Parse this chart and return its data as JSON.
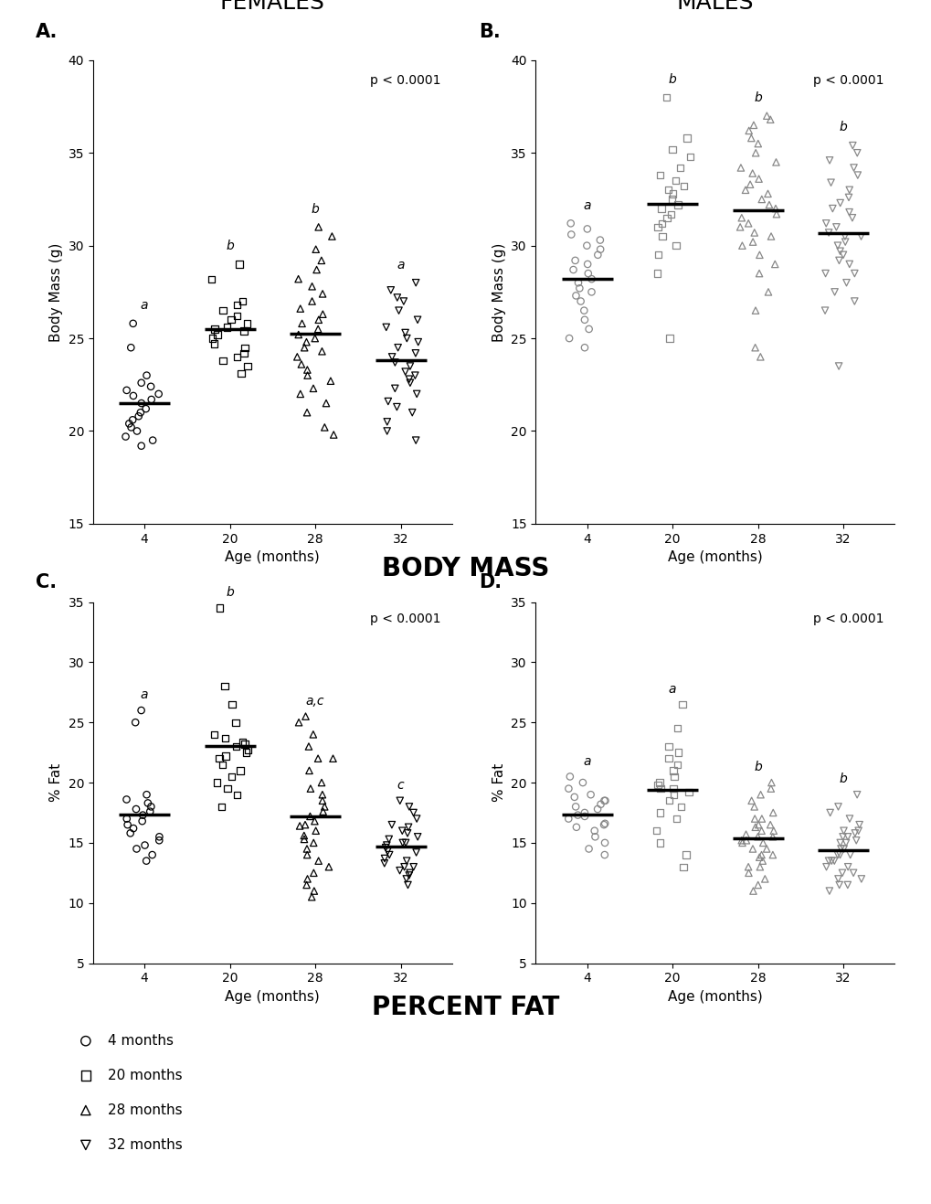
{
  "fig_width": 10.2,
  "fig_height": 13.17,
  "background_color": "#ffffff",
  "panel_A": {
    "title": "FEMALES",
    "panel_label": "A.",
    "ylabel": "Body Mass (g)",
    "xlabel": "Age (months)",
    "pvalue": "p < 0.0001",
    "ylim": [
      15,
      40
    ],
    "yticks": [
      15,
      20,
      25,
      30,
      35,
      40
    ],
    "xtick_labels": [
      "4",
      "20",
      "28",
      "32"
    ],
    "sig_labels": [
      "a",
      "b",
      "b",
      "a"
    ],
    "color": "#000000",
    "groups": {
      "4": {
        "mean": 22.0,
        "values": [
          19.2,
          19.5,
          19.7,
          20.0,
          20.2,
          20.4,
          20.6,
          20.8,
          21.0,
          21.2,
          21.5,
          21.7,
          21.9,
          22.0,
          22.2,
          22.4,
          22.6,
          23.0,
          24.5,
          25.8
        ]
      },
      "20": {
        "mean": 25.5,
        "values": [
          23.1,
          23.5,
          23.8,
          24.0,
          24.2,
          24.5,
          24.7,
          25.0,
          25.2,
          25.4,
          25.5,
          25.6,
          25.8,
          26.0,
          26.2,
          26.5,
          26.8,
          27.0,
          28.2,
          29.0
        ]
      },
      "28": {
        "mean": 25.3,
        "values": [
          19.8,
          20.2,
          21.0,
          21.5,
          22.0,
          22.3,
          22.7,
          23.0,
          23.3,
          23.6,
          24.0,
          24.3,
          24.5,
          24.8,
          25.0,
          25.2,
          25.5,
          25.8,
          26.0,
          26.3,
          26.6,
          27.0,
          27.4,
          27.8,
          28.2,
          28.7,
          29.2,
          29.8,
          30.5,
          31.0
        ]
      },
      "32": {
        "mean": 23.5,
        "values": [
          19.5,
          20.0,
          20.5,
          21.0,
          21.3,
          21.6,
          22.0,
          22.3,
          22.6,
          22.8,
          23.0,
          23.2,
          23.5,
          23.7,
          24.0,
          24.2,
          24.5,
          24.8,
          25.0,
          25.3,
          25.6,
          26.0,
          26.5,
          27.0,
          27.2,
          27.6,
          28.0
        ]
      }
    }
  },
  "panel_B": {
    "title": "MALES",
    "panel_label": "B.",
    "ylabel": "Body Mass (g)",
    "xlabel": "Age (months)",
    "pvalue": "p < 0.0001",
    "ylim": [
      15,
      40
    ],
    "yticks": [
      15,
      20,
      25,
      30,
      35,
      40
    ],
    "xtick_labels": [
      "4",
      "20",
      "28",
      "32"
    ],
    "sig_labels": [
      "a",
      "b",
      "b",
      "b"
    ],
    "color": "#888888",
    "groups": {
      "4": {
        "mean": 28.0,
        "values": [
          24.5,
          25.0,
          25.5,
          26.0,
          26.5,
          27.0,
          27.3,
          27.5,
          27.7,
          28.0,
          28.2,
          28.5,
          28.7,
          29.0,
          29.2,
          29.5,
          29.8,
          30.0,
          30.3,
          30.6,
          30.9,
          31.2
        ]
      },
      "20": {
        "mean": 31.8,
        "values": [
          25.0,
          28.5,
          29.5,
          30.0,
          30.5,
          31.0,
          31.2,
          31.5,
          31.7,
          32.0,
          32.2,
          32.5,
          32.8,
          33.0,
          33.2,
          33.5,
          33.8,
          34.2,
          34.8,
          35.2,
          35.8,
          38.0
        ]
      },
      "28": {
        "mean": 31.2,
        "values": [
          24.0,
          24.5,
          26.5,
          27.5,
          28.5,
          29.0,
          29.5,
          30.0,
          30.2,
          30.5,
          30.7,
          31.0,
          31.2,
          31.5,
          31.7,
          32.0,
          32.2,
          32.5,
          32.8,
          33.0,
          33.3,
          33.6,
          33.9,
          34.2,
          34.5,
          35.0,
          35.5,
          35.8,
          36.2,
          36.5,
          36.8,
          37.0
        ]
      },
      "32": {
        "mean": 29.8,
        "values": [
          23.5,
          26.5,
          27.0,
          27.5,
          28.0,
          28.5,
          29.0,
          29.2,
          29.5,
          29.7,
          30.0,
          30.2,
          30.5,
          30.7,
          31.0,
          31.2,
          31.5,
          31.8,
          32.0,
          32.3,
          32.6,
          33.0,
          33.4,
          33.8,
          34.2,
          34.6,
          35.0,
          35.4,
          28.5,
          30.5
        ]
      }
    }
  },
  "panel_C": {
    "panel_label": "C.",
    "ylabel": "% Fat",
    "xlabel": "Age (months)",
    "pvalue": "p < 0.0001",
    "ylim": [
      5,
      35
    ],
    "yticks": [
      5,
      10,
      15,
      20,
      25,
      30,
      35
    ],
    "xtick_labels": [
      "4",
      "20",
      "28",
      "32"
    ],
    "sig_labels": [
      "a",
      "b",
      "a,c",
      "c"
    ],
    "color": "#000000",
    "groups": {
      "4": {
        "mean": 17.3,
        "values": [
          13.5,
          14.0,
          14.5,
          14.8,
          15.2,
          15.5,
          15.8,
          16.2,
          16.5,
          16.8,
          17.0,
          17.3,
          17.6,
          17.8,
          18.0,
          18.3,
          18.6,
          19.0,
          25.0,
          26.0
        ]
      },
      "20": {
        "mean": 22.5,
        "values": [
          18.0,
          19.0,
          19.5,
          20.0,
          20.5,
          21.0,
          21.5,
          22.0,
          22.2,
          22.5,
          22.7,
          23.0,
          23.2,
          23.4,
          23.7,
          24.0,
          25.0,
          26.5,
          28.0,
          34.5
        ]
      },
      "28": {
        "mean": 16.5,
        "values": [
          10.5,
          11.0,
          11.5,
          12.0,
          12.5,
          13.0,
          13.5,
          14.0,
          14.5,
          15.0,
          15.3,
          15.6,
          16.0,
          16.4,
          16.8,
          17.2,
          17.6,
          18.0,
          18.5,
          19.0,
          19.5,
          20.0,
          21.0,
          22.0,
          23.0,
          24.0,
          25.0,
          25.5,
          22.0,
          16.5
        ]
      },
      "32": {
        "mean": 14.0,
        "values": [
          11.5,
          12.0,
          12.3,
          12.7,
          13.0,
          13.3,
          13.7,
          14.0,
          14.3,
          14.6,
          14.8,
          15.0,
          15.3,
          15.5,
          15.8,
          16.0,
          16.3,
          16.5,
          17.0,
          17.5,
          18.0,
          18.5,
          13.0,
          12.5,
          13.5,
          14.2,
          15.0
        ]
      }
    }
  },
  "panel_D": {
    "panel_label": "D.",
    "ylabel": "% Fat",
    "xlabel": "Age (months)",
    "pvalue": "p < 0.0001",
    "ylim": [
      5,
      35
    ],
    "yticks": [
      5,
      10,
      15,
      20,
      25,
      30,
      35
    ],
    "xtick_labels": [
      "4",
      "20",
      "28",
      "32"
    ],
    "sig_labels": [
      "a",
      "a",
      "b",
      "b"
    ],
    "color": "#888888",
    "groups": {
      "4": {
        "mean": 17.2,
        "values": [
          14.0,
          14.5,
          15.0,
          15.5,
          16.0,
          16.3,
          16.6,
          17.0,
          17.3,
          17.5,
          17.8,
          18.0,
          18.2,
          18.5,
          18.8,
          19.0,
          19.5,
          20.0,
          20.5,
          18.5,
          17.2,
          16.5
        ]
      },
      "20": {
        "mean": 19.0,
        "values": [
          13.0,
          14.0,
          15.0,
          16.0,
          17.0,
          17.5,
          18.0,
          18.5,
          19.0,
          19.2,
          19.5,
          19.8,
          20.0,
          20.5,
          21.0,
          21.5,
          22.0,
          22.5,
          23.0,
          24.5,
          26.5,
          19.5
        ]
      },
      "28": {
        "mean": 15.5,
        "values": [
          11.0,
          11.5,
          12.0,
          12.5,
          13.0,
          13.5,
          14.0,
          14.5,
          15.0,
          15.2,
          15.5,
          15.7,
          16.0,
          16.3,
          16.5,
          17.0,
          17.5,
          18.0,
          18.5,
          19.0,
          19.5,
          20.0,
          14.0,
          15.0,
          16.0,
          13.0,
          14.5,
          15.5,
          16.5,
          17.0,
          15.2,
          13.8
        ]
      },
      "32": {
        "mean": 14.5,
        "values": [
          11.0,
          11.5,
          12.0,
          12.5,
          13.0,
          13.5,
          14.0,
          14.5,
          15.0,
          15.2,
          15.5,
          15.8,
          16.0,
          16.5,
          17.0,
          17.5,
          18.0,
          19.0,
          14.0,
          13.5,
          12.5,
          11.5,
          15.5,
          14.5,
          13.5,
          14.0,
          15.0,
          16.0,
          12.0,
          13.0
        ]
      }
    }
  },
  "section_labels": {
    "body_mass": "BODY MASS",
    "percent_fat": "PERCENT FAT"
  },
  "legend": {
    "entries": [
      "4 months",
      "20 months",
      "28 months",
      "32 months"
    ],
    "marker_keys": [
      "o",
      "s",
      "^",
      "v"
    ]
  }
}
